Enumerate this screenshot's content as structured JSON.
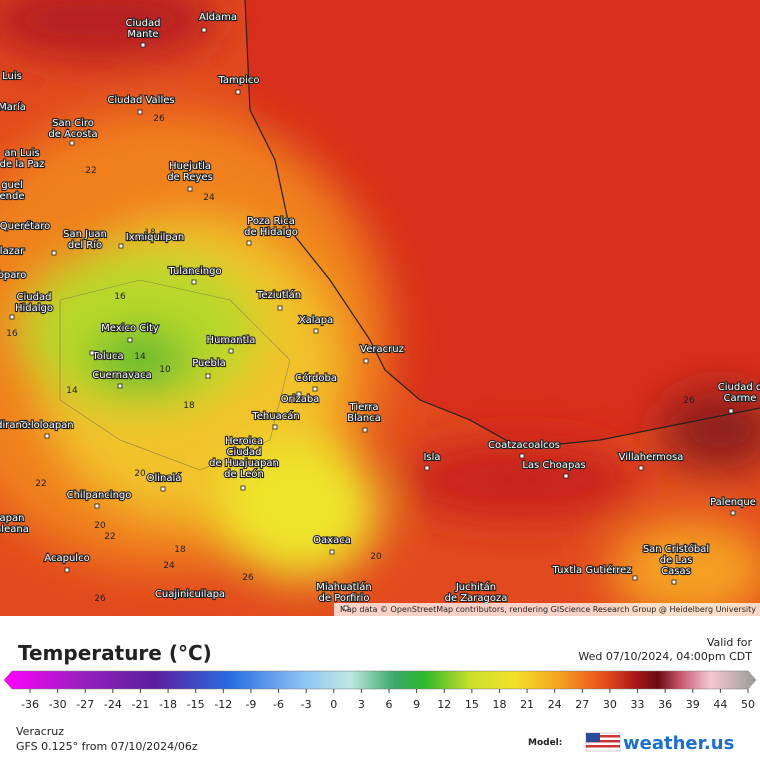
{
  "map": {
    "cities": [
      {
        "lines": [
          "Ciudad",
          "Mante"
        ]
      },
      {
        "lines": [
          "Aldama"
        ]
      },
      {
        "lines": [
          "Tampico"
        ]
      },
      {
        "lines": [
          "Luis"
        ]
      },
      {
        "lines": [
          "María"
        ]
      },
      {
        "lines": [
          "Ciudad Valles"
        ]
      },
      {
        "lines": [
          "San Ciro",
          "de Acosta"
        ]
      },
      {
        "lines": [
          "an Luis",
          "de la Paz"
        ]
      },
      {
        "lines": [
          "guel",
          "ende"
        ]
      },
      {
        "lines": [
          "Huejutla",
          "de Reyes"
        ]
      },
      {
        "lines": [
          "Poza Rica",
          "de Hidalgo"
        ]
      },
      {
        "lines": [
          "Querétaro"
        ]
      },
      {
        "lines": [
          "lazar"
        ]
      },
      {
        "lines": [
          "San Juan",
          "del Río"
        ]
      },
      {
        "lines": [
          "Ixmiquilpan"
        ]
      },
      {
        "lines": [
          "Tulancingo"
        ]
      },
      {
        "lines": [
          "bparo"
        ]
      },
      {
        "lines": [
          "Ciudad",
          "Hidalgo"
        ]
      },
      {
        "lines": [
          "Teziutlán"
        ]
      },
      {
        "lines": [
          "Xalapa"
        ]
      },
      {
        "lines": [
          "Mexico City"
        ]
      },
      {
        "lines": [
          "Humantla"
        ]
      },
      {
        "lines": [
          "Veracruz"
        ]
      },
      {
        "lines": [
          "Toluca"
        ]
      },
      {
        "lines": [
          "Puebla"
        ]
      },
      {
        "lines": [
          "Cuernavaca"
        ]
      },
      {
        "lines": [
          "Córdoba"
        ]
      },
      {
        "lines": [
          "Orizaba"
        ]
      },
      {
        "lines": [
          "Tierra",
          "Blanca"
        ]
      },
      {
        "lines": [
          "Tehuacán"
        ]
      },
      {
        "lines": [
          "Teloloapan"
        ]
      },
      {
        "lines": [
          "dirano"
        ]
      },
      {
        "lines": [
          "Heroica",
          "Ciudad",
          "de Huajuapan",
          "de León"
        ]
      },
      {
        "lines": [
          "Coatzacoalcos"
        ]
      },
      {
        "lines": [
          "Ciudad d",
          "Carme"
        ]
      },
      {
        "lines": [
          "Isla"
        ]
      },
      {
        "lines": [
          "Las Choapas"
        ]
      },
      {
        "lines": [
          "Villahermosa"
        ]
      },
      {
        "lines": [
          "Olinalá"
        ]
      },
      {
        "lines": [
          "Chilpancingo"
        ]
      },
      {
        "lines": [
          "Palenque"
        ]
      },
      {
        "lines": [
          "apan",
          "aleana"
        ]
      },
      {
        "lines": [
          "Oaxaca"
        ]
      },
      {
        "lines": [
          "San Cristóbal",
          "de Las",
          "Casas"
        ]
      },
      {
        "lines": [
          "Acapulco"
        ]
      },
      {
        "lines": [
          "Tuxtla Gutiérrez"
        ]
      },
      {
        "lines": [
          "Miahuatlán",
          "de Porfirio"
        ]
      },
      {
        "lines": [
          "Juchitán",
          "de Zaragoza"
        ]
      },
      {
        "lines": [
          "Cuajinicuilapa"
        ]
      }
    ],
    "contour_labels": [
      26,
      22,
      24,
      18,
      16,
      16,
      14,
      10,
      14,
      18,
      20,
      22,
      20,
      22,
      18,
      24,
      26,
      26,
      20,
      26
    ],
    "attribution": "Map data © OpenStreetMap contributors, rendering GIScience Research Group @ Heidelberg University"
  },
  "legend": {
    "title": "Temperature (°C)",
    "ticks": [
      -36,
      -30,
      -27,
      -24,
      -21,
      -18,
      -15,
      -12,
      -9,
      -6,
      -3,
      0,
      3,
      6,
      9,
      12,
      15,
      18,
      21,
      24,
      27,
      30,
      33,
      36,
      39,
      44,
      50
    ]
  },
  "valid": {
    "label": "Valid for",
    "time": "Wed 07/10/2024, 04:00pm CDT"
  },
  "footer": {
    "location": "Veracruz",
    "model_run": "GFS 0.125° from 07/10/2024/06z",
    "model_label": "Model:",
    "brand": "weather.us"
  }
}
